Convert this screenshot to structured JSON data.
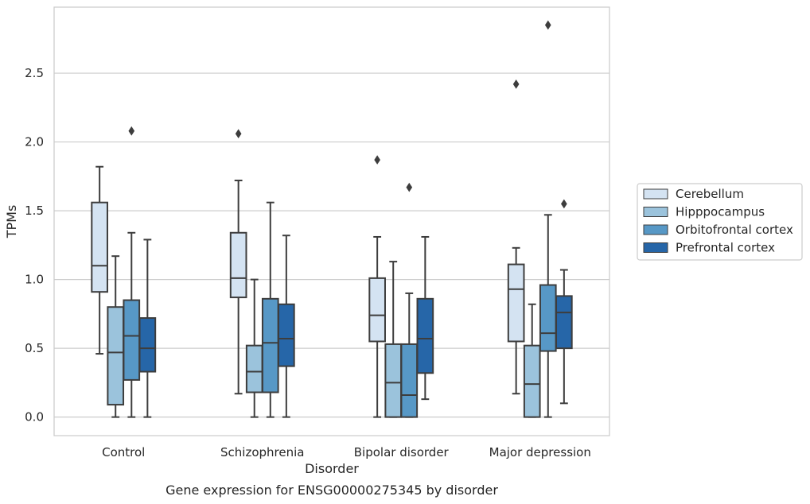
{
  "chart_data": {
    "type": "box",
    "title": "",
    "caption": "Gene expression for ENSG00000275345 by disorder",
    "xlabel": "Disorder",
    "ylabel": "TPMs",
    "ylim": [
      -0.135,
      2.98
    ],
    "yticks": [
      "0.0",
      "0.5",
      "1.0",
      "1.5",
      "2.0",
      "2.5"
    ],
    "ytick_values": [
      0,
      0.5,
      1.0,
      1.5,
      2.0,
      2.5
    ],
    "grid": "horizontal",
    "legend_placement": "center-right outside",
    "categories": [
      "Control",
      "Schizophrenia",
      "Bipolar disorder",
      "Major depression"
    ],
    "series": [
      {
        "name": "Cerebellum",
        "color": "#d4e3f2",
        "boxes": [
          {
            "whislo": 0.46,
            "q1": 0.91,
            "med": 1.1,
            "q3": 1.56,
            "whishi": 1.82,
            "fliers": []
          },
          {
            "whislo": 0.17,
            "q1": 0.87,
            "med": 1.01,
            "q3": 1.34,
            "whishi": 1.72,
            "fliers": [
              2.06
            ]
          },
          {
            "whislo": 0.0,
            "q1": 0.55,
            "med": 0.74,
            "q3": 1.01,
            "whishi": 1.31,
            "fliers": [
              1.87
            ]
          },
          {
            "whislo": 0.17,
            "q1": 0.55,
            "med": 0.93,
            "q3": 1.11,
            "whishi": 1.23,
            "fliers": [
              2.42
            ]
          }
        ]
      },
      {
        "name": "Hipppocampus",
        "color": "#9bc3dc",
        "boxes": [
          {
            "whislo": 0.0,
            "q1": 0.09,
            "med": 0.47,
            "q3": 0.8,
            "whishi": 1.17,
            "fliers": []
          },
          {
            "whislo": 0.0,
            "q1": 0.18,
            "med": 0.33,
            "q3": 0.52,
            "whishi": 1.0,
            "fliers": []
          },
          {
            "whislo": 0.0,
            "q1": 0.0,
            "med": 0.25,
            "q3": 0.53,
            "whishi": 1.13,
            "fliers": []
          },
          {
            "whislo": 0.0,
            "q1": 0.0,
            "med": 0.24,
            "q3": 0.52,
            "whishi": 0.82,
            "fliers": []
          }
        ]
      },
      {
        "name": "Orbitofrontal cortex",
        "color": "#5798c6",
        "boxes": [
          {
            "whislo": 0.0,
            "q1": 0.27,
            "med": 0.59,
            "q3": 0.85,
            "whishi": 1.34,
            "fliers": [
              2.08
            ]
          },
          {
            "whislo": 0.0,
            "q1": 0.18,
            "med": 0.54,
            "q3": 0.86,
            "whishi": 1.56,
            "fliers": []
          },
          {
            "whislo": 0.0,
            "q1": 0.0,
            "med": 0.16,
            "q3": 0.53,
            "whishi": 0.9,
            "fliers": [
              1.67
            ]
          },
          {
            "whislo": 0.0,
            "q1": 0.48,
            "med": 0.61,
            "q3": 0.96,
            "whishi": 1.47,
            "fliers": [
              2.85
            ]
          }
        ]
      },
      {
        "name": "Prefrontal cortex",
        "color": "#2666a8",
        "boxes": [
          {
            "whislo": 0.0,
            "q1": 0.33,
            "med": 0.5,
            "q3": 0.72,
            "whishi": 1.29,
            "fliers": []
          },
          {
            "whislo": 0.0,
            "q1": 0.37,
            "med": 0.57,
            "q3": 0.82,
            "whishi": 1.32,
            "fliers": []
          },
          {
            "whislo": 0.13,
            "q1": 0.32,
            "med": 0.57,
            "q3": 0.86,
            "whishi": 1.31,
            "fliers": []
          },
          {
            "whislo": 0.1,
            "q1": 0.5,
            "med": 0.76,
            "q3": 0.88,
            "whishi": 1.07,
            "fliers": [
              1.55
            ]
          }
        ]
      }
    ]
  }
}
